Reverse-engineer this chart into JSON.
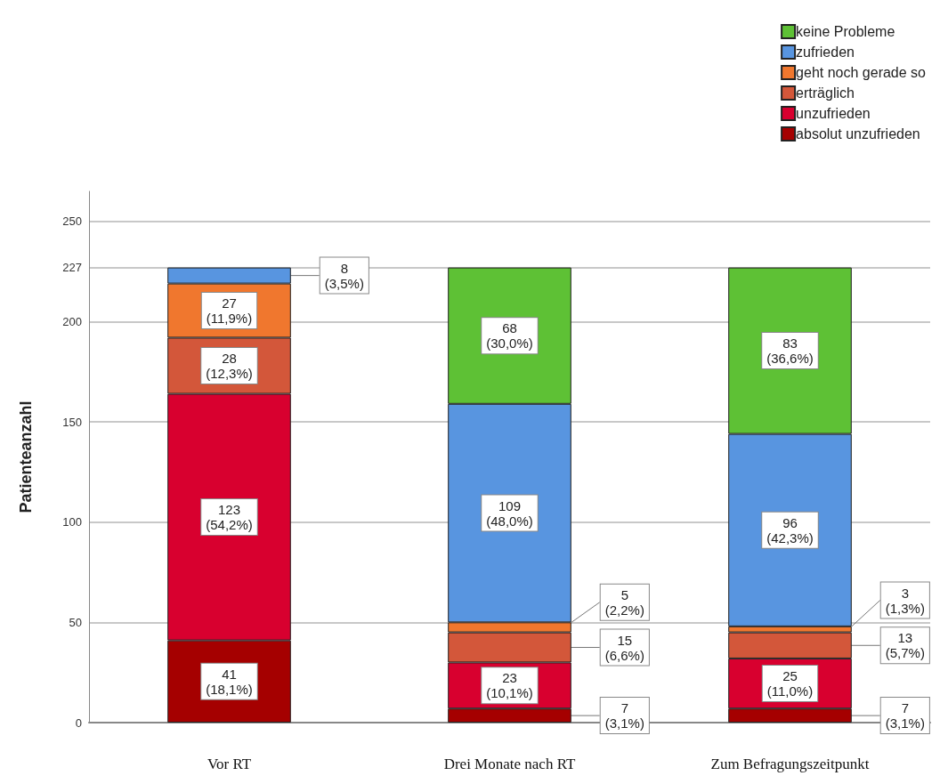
{
  "chart_data": {
    "type": "bar",
    "stacked": true,
    "ylabel": "Patienteanzahl",
    "categories": [
      "Vor RT",
      "Drei Monate nach RT",
      "Zum Befragungszeitpunkt"
    ],
    "series": [
      {
        "name": "absolut unzufrieden",
        "color": "#a50000",
        "values": [
          41,
          7,
          7
        ],
        "value_labels": [
          "41\n(18,1%)",
          "7\n(3,1%)",
          "7\n(3,1%)"
        ]
      },
      {
        "name": "unzufrieden",
        "color": "#d8002f",
        "values": [
          123,
          23,
          25
        ],
        "value_labels": [
          "123\n(54,2%)",
          "23\n(10,1%)",
          "25\n(11,0%)"
        ]
      },
      {
        "name": "erträglich",
        "color": "#d3573a",
        "values": [
          28,
          15,
          13
        ],
        "value_labels": [
          "28\n(12,3%)",
          "15\n(6,6%)",
          "13\n(5,7%)"
        ]
      },
      {
        "name": "geht noch gerade so",
        "color": "#f0772e",
        "values": [
          27,
          5,
          3
        ],
        "value_labels": [
          "27\n(11,9%)",
          "5\n(2,2%)",
          "3\n(1,3%)"
        ]
      },
      {
        "name": "zufrieden",
        "color": "#5895e0",
        "values": [
          8,
          109,
          96
        ],
        "value_labels": [
          "8\n(3,5%)",
          "109\n(48,0%)",
          "96\n(42,3%)"
        ]
      },
      {
        "name": "keine Probleme",
        "color": "#5ec135",
        "values": [
          null,
          68,
          83
        ],
        "value_labels": [
          null,
          "68\n(30,0%)",
          "83\n(36,6%)"
        ]
      }
    ],
    "ylim": [
      0,
      265
    ],
    "yticks": [
      0,
      50,
      100,
      150,
      200,
      227,
      250
    ],
    "grid": "y",
    "legend": "top right"
  }
}
